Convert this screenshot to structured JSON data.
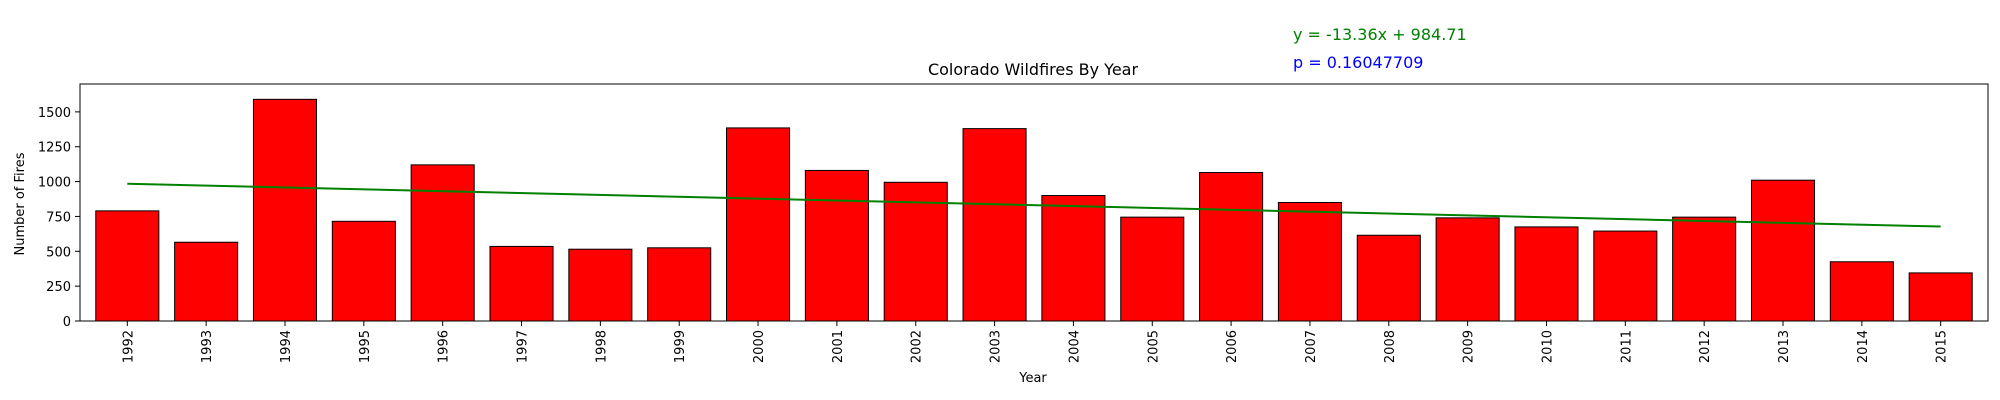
{
  "chart_data": {
    "type": "bar",
    "title": "Colorado Wildfires By Year",
    "xlabel": "Year",
    "ylabel": "Number of Fires",
    "categories": [
      "1992",
      "1993",
      "1994",
      "1995",
      "1996",
      "1997",
      "1998",
      "1999",
      "2000",
      "2001",
      "2002",
      "2003",
      "2004",
      "2005",
      "2006",
      "2007",
      "2008",
      "2009",
      "2010",
      "2011",
      "2012",
      "2013",
      "2014",
      "2015"
    ],
    "values": [
      790,
      565,
      1590,
      715,
      1120,
      535,
      515,
      525,
      1385,
      1080,
      995,
      1380,
      900,
      745,
      1065,
      850,
      615,
      740,
      675,
      645,
      745,
      1010,
      425,
      345
    ],
    "ylim": [
      0,
      1700
    ],
    "yticks": [
      0,
      250,
      500,
      750,
      1000,
      1250,
      1500
    ],
    "ytick_labels": [
      "0",
      "250",
      "500",
      "750",
      "1000",
      "1250",
      "1500"
    ],
    "bar_color": "#ff0000",
    "bar_edge_color": "#000000",
    "trendline": {
      "color": "#008000",
      "slope": -13.36,
      "intercept": 984.71
    },
    "annotations": {
      "equation": "y = -13.36x + 984.71",
      "equation_color": "#008000",
      "p_value": "p = 0.16047709",
      "p_value_color": "#0000ff"
    },
    "grid": false
  }
}
